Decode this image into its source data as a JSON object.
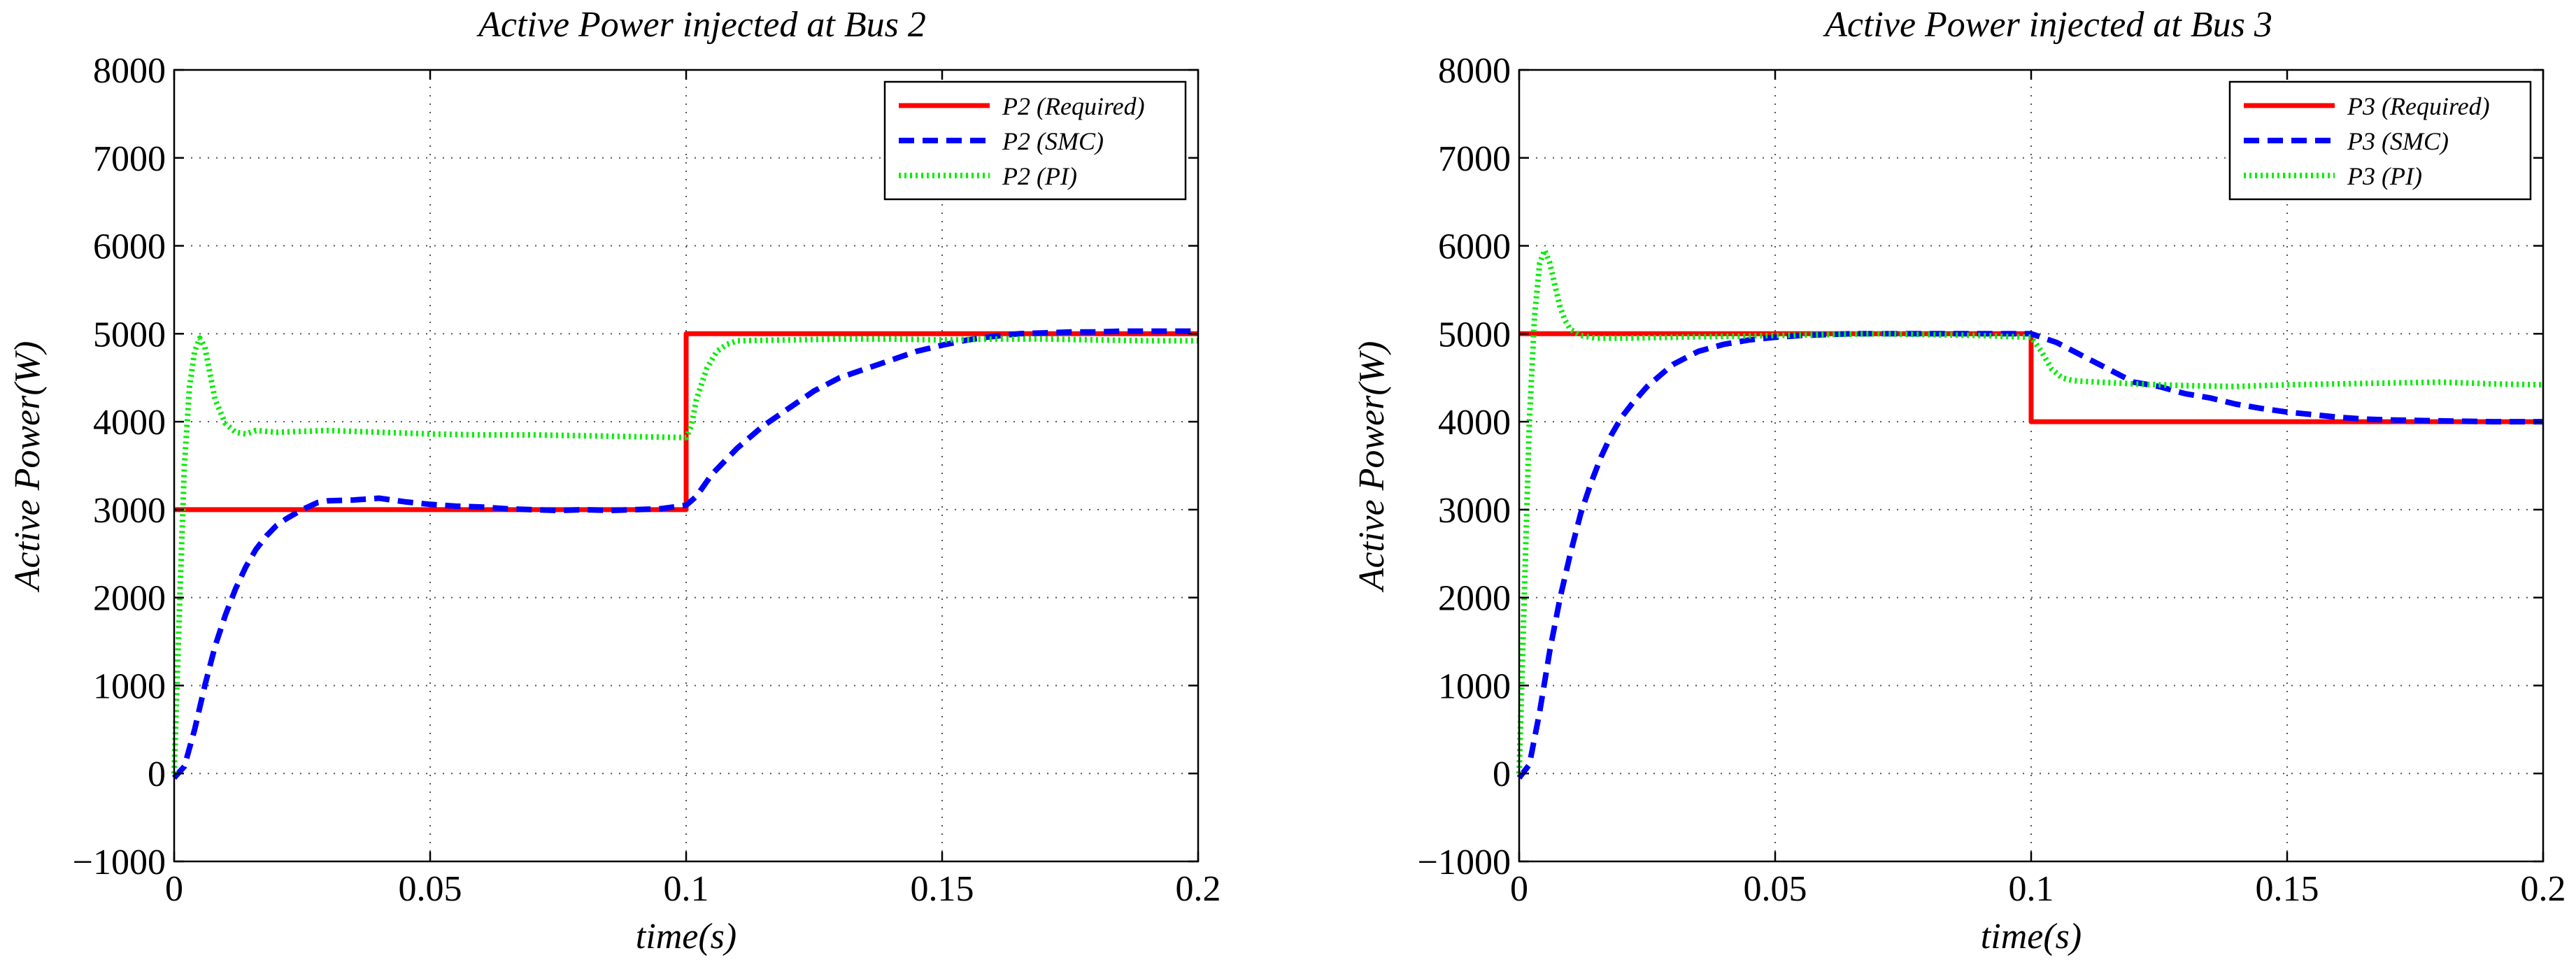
{
  "chart_data": [
    {
      "type": "line",
      "title": "Active Power injected at Bus 2",
      "xlabel": "time(s)",
      "ylabel": "Active Power(W)",
      "xlim": [
        0,
        0.2
      ],
      "ylim": [
        -1000,
        8000
      ],
      "xticks": [
        0,
        0.05,
        0.1,
        0.15,
        0.2
      ],
      "xtick_labels": [
        "0",
        "0.05",
        "0.1",
        "0.15",
        "0.2"
      ],
      "yticks": [
        -1000,
        0,
        1000,
        2000,
        3000,
        4000,
        5000,
        6000,
        7000,
        8000
      ],
      "ytick_labels": [
        "−1000",
        "0",
        "1000",
        "2000",
        "3000",
        "4000",
        "5000",
        "6000",
        "7000",
        "8000"
      ],
      "grid": true,
      "legend_position": "top-right",
      "series": [
        {
          "name": "P2 (Required)",
          "color": "#ff0000",
          "style": "solid",
          "x": [
            0,
            0.1,
            0.1,
            0.2
          ],
          "y": [
            3000,
            3000,
            5000,
            5000
          ]
        },
        {
          "name": "P2 (SMC)",
          "color": "#0000ff",
          "style": "dashed",
          "x": [
            0,
            0.002,
            0.004,
            0.006,
            0.008,
            0.01,
            0.012,
            0.014,
            0.016,
            0.018,
            0.02,
            0.022,
            0.025,
            0.028,
            0.03,
            0.035,
            0.04,
            0.045,
            0.05,
            0.055,
            0.06,
            0.065,
            0.07,
            0.075,
            0.08,
            0.085,
            0.09,
            0.095,
            0.1,
            0.102,
            0.105,
            0.11,
            0.115,
            0.12,
            0.125,
            0.13,
            0.135,
            0.14,
            0.145,
            0.15,
            0.155,
            0.16,
            0.165,
            0.17,
            0.175,
            0.18,
            0.185,
            0.19,
            0.195,
            0.2
          ],
          "y": [
            -50,
            80,
            500,
            1000,
            1450,
            1800,
            2100,
            2350,
            2550,
            2700,
            2820,
            2900,
            3000,
            3080,
            3100,
            3110,
            3130,
            3090,
            3060,
            3040,
            3030,
            3010,
            3000,
            2990,
            3000,
            2990,
            3000,
            3010,
            3050,
            3150,
            3400,
            3700,
            3950,
            4150,
            4350,
            4500,
            4600,
            4700,
            4800,
            4870,
            4930,
            4970,
            5000,
            5010,
            5020,
            5020,
            5030,
            5030,
            5030,
            5030
          ]
        },
        {
          "name": "P2 (PI)",
          "color": "#00ee00",
          "style": "dotted",
          "x": [
            0,
            0.001,
            0.002,
            0.003,
            0.004,
            0.005,
            0.006,
            0.007,
            0.008,
            0.01,
            0.012,
            0.014,
            0.016,
            0.02,
            0.03,
            0.04,
            0.05,
            0.06,
            0.07,
            0.08,
            0.09,
            0.1,
            0.101,
            0.102,
            0.104,
            0.106,
            0.108,
            0.11,
            0.12,
            0.13,
            0.14,
            0.15,
            0.16,
            0.17,
            0.18,
            0.19,
            0.2
          ],
          "y": [
            0,
            1800,
            3500,
            4400,
            4800,
            4950,
            4850,
            4550,
            4250,
            3980,
            3880,
            3860,
            3900,
            3880,
            3900,
            3880,
            3860,
            3850,
            3850,
            3840,
            3830,
            3820,
            3950,
            4250,
            4600,
            4800,
            4880,
            4920,
            4930,
            4940,
            4940,
            4930,
            4940,
            4940,
            4930,
            4920,
            4920
          ]
        }
      ]
    },
    {
      "type": "line",
      "title": "Active Power injected at Bus 3",
      "xlabel": "time(s)",
      "ylabel": "Active Power(W)",
      "xlim": [
        0,
        0.2
      ],
      "ylim": [
        -1000,
        8000
      ],
      "xticks": [
        0,
        0.05,
        0.1,
        0.15,
        0.2
      ],
      "xtick_labels": [
        "0",
        "0.05",
        "0.1",
        "0.15",
        "0.2"
      ],
      "yticks": [
        -1000,
        0,
        1000,
        2000,
        3000,
        4000,
        5000,
        6000,
        7000,
        8000
      ],
      "ytick_labels": [
        "−1000",
        "0",
        "1000",
        "2000",
        "3000",
        "4000",
        "5000",
        "6000",
        "7000",
        "8000"
      ],
      "grid": true,
      "legend_position": "top-right",
      "series": [
        {
          "name": "P3 (Required)",
          "color": "#ff0000",
          "style": "solid",
          "x": [
            0,
            0.1,
            0.1,
            0.2
          ],
          "y": [
            5000,
            5000,
            4000,
            4000
          ]
        },
        {
          "name": "P3 (SMC)",
          "color": "#0000ff",
          "style": "dashed",
          "x": [
            0,
            0.002,
            0.004,
            0.006,
            0.008,
            0.01,
            0.012,
            0.014,
            0.016,
            0.018,
            0.02,
            0.022,
            0.025,
            0.028,
            0.03,
            0.035,
            0.04,
            0.045,
            0.05,
            0.055,
            0.06,
            0.065,
            0.07,
            0.075,
            0.08,
            0.085,
            0.09,
            0.095,
            0.1,
            0.105,
            0.11,
            0.115,
            0.12,
            0.125,
            0.13,
            0.135,
            0.14,
            0.145,
            0.15,
            0.155,
            0.16,
            0.165,
            0.17,
            0.18,
            0.19,
            0.2
          ],
          "y": [
            -50,
            100,
            700,
            1400,
            2000,
            2500,
            2950,
            3300,
            3600,
            3850,
            4050,
            4200,
            4400,
            4550,
            4650,
            4800,
            4880,
            4930,
            4960,
            4980,
            4990,
            5000,
            5000,
            5000,
            5000,
            5000,
            5000,
            5000,
            5000,
            4900,
            4750,
            4600,
            4450,
            4400,
            4320,
            4270,
            4200,
            4150,
            4110,
            4080,
            4050,
            4030,
            4020,
            4010,
            4000,
            4000
          ]
        },
        {
          "name": "P3 (PI)",
          "color": "#00ee00",
          "style": "dotted",
          "x": [
            0,
            0.001,
            0.002,
            0.003,
            0.004,
            0.005,
            0.006,
            0.007,
            0.008,
            0.009,
            0.01,
            0.012,
            0.015,
            0.02,
            0.03,
            0.04,
            0.05,
            0.06,
            0.07,
            0.08,
            0.09,
            0.1,
            0.102,
            0.104,
            0.106,
            0.108,
            0.11,
            0.12,
            0.13,
            0.14,
            0.15,
            0.16,
            0.17,
            0.18,
            0.19,
            0.2
          ],
          "y": [
            0,
            2000,
            4000,
            5200,
            5800,
            5950,
            5800,
            5550,
            5300,
            5150,
            5050,
            4980,
            4950,
            4950,
            4960,
            4970,
            4980,
            4990,
            5000,
            4990,
            4980,
            4960,
            4800,
            4600,
            4500,
            4470,
            4460,
            4430,
            4410,
            4400,
            4420,
            4430,
            4440,
            4450,
            4430,
            4420
          ]
        }
      ]
    }
  ]
}
